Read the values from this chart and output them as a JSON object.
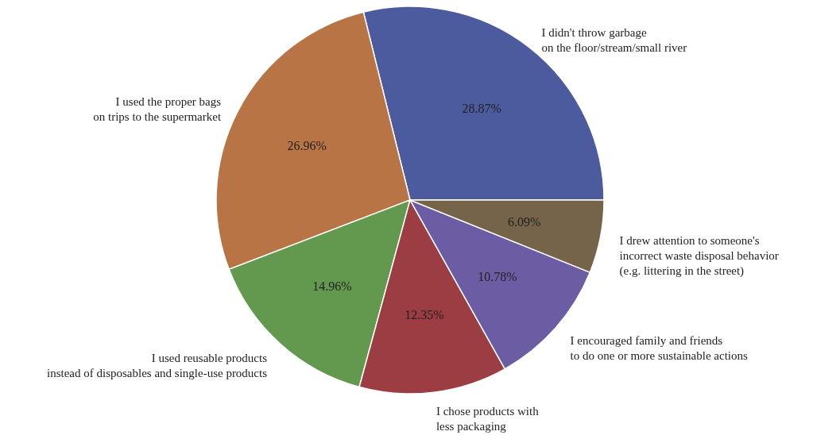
{
  "chart_data": {
    "type": "pie",
    "categories": [
      "I didn't throw garbage\non the floor/stream/small river",
      "I used the proper bags\non trips to the supermarket",
      "I used reusable products\ninstead of disposables and single-use products",
      "I chose products with\nless packaging",
      "I encouraged family and friends\nto do one or more sustainable actions",
      "I drew attention to someone's\nincorrect waste disposal behavior\n(e.g. littering in the street)"
    ],
    "values": [
      28.87,
      26.96,
      14.96,
      12.35,
      10.78,
      6.09
    ],
    "value_labels": [
      "28.87%",
      "26.96%",
      "14.96%",
      "12.35%",
      "10.78%",
      "6.09%"
    ],
    "colors": [
      "#4c5a9e",
      "#b87444",
      "#63994f",
      "#9b3d42",
      "#6c5ca3",
      "#75634a"
    ]
  }
}
